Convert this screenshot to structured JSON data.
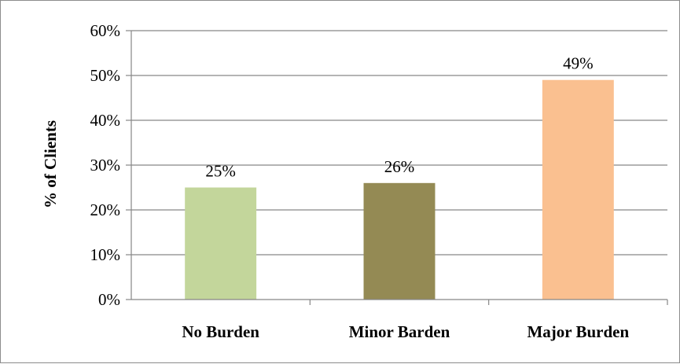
{
  "chart_data": {
    "type": "bar",
    "title": "",
    "xlabel": "",
    "ylabel": "% of Clients",
    "categories": [
      "No Burden",
      "Minor Barden",
      "Major Burden"
    ],
    "values": [
      25,
      26,
      49
    ],
    "data_labels": [
      "25%",
      "26%",
      "49%"
    ],
    "ylim": [
      0,
      60
    ],
    "yticks": [
      0,
      10,
      20,
      30,
      40,
      50,
      60
    ],
    "ytick_labels": [
      "0%",
      "10%",
      "20%",
      "30%",
      "40%",
      "50%",
      "60%"
    ],
    "grid": true,
    "legend": "none",
    "colors": [
      "#c3d69b",
      "#948a54",
      "#fac090"
    ],
    "gridline_color": "#878787",
    "axis_color": "#878787"
  }
}
